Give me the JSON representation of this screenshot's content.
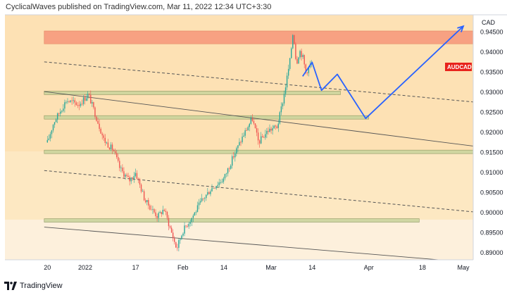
{
  "header": {
    "published_text": "CyclicalWaves published on TradingView.com, Mar 11, 2022 12:34 UTC+3:30"
  },
  "footer": {
    "brand": "TradingView"
  },
  "colors": {
    "background_band": "#fde1b4",
    "resistance_zone": "#f79b7d",
    "support_zone": "#c9d39b",
    "candle_up": "#26a69a",
    "candle_down": "#ef5350",
    "projection_line": "#2962ff",
    "symbol_label": "#e8231c"
  },
  "chart_data": {
    "type": "candlestick",
    "currency": "CAD",
    "symbol": "AUDCAD",
    "ylim": [
      0.888,
      0.947
    ],
    "price_axis_ticks": [
      "0.94500",
      "0.94000",
      "0.93500",
      "0.93000",
      "0.92500",
      "0.92000",
      "0.91500",
      "0.91000",
      "0.90500",
      "0.90000",
      "0.89500",
      "0.89000"
    ],
    "time_axis_ticks": [
      "20",
      "2022",
      "17",
      "Feb",
      "14",
      "Mar",
      "14",
      "Apr",
      "18",
      "May"
    ],
    "price_series": [
      {
        "date": "2021-12-20",
        "value": 0.9175
      },
      {
        "date": "2021-12-22",
        "value": 0.9225
      },
      {
        "date": "2021-12-26",
        "value": 0.928
      },
      {
        "date": "2021-12-30",
        "value": 0.927
      },
      {
        "date": "2022-01-02",
        "value": 0.9295
      },
      {
        "date": "2022-01-04",
        "value": 0.925
      },
      {
        "date": "2022-01-07",
        "value": 0.918
      },
      {
        "date": "2022-01-10",
        "value": 0.9155
      },
      {
        "date": "2022-01-12",
        "value": 0.911
      },
      {
        "date": "2022-01-15",
        "value": 0.908
      },
      {
        "date": "2022-01-17",
        "value": 0.91
      },
      {
        "date": "2022-01-20",
        "value": 0.903
      },
      {
        "date": "2022-01-24",
        "value": 0.899
      },
      {
        "date": "2022-01-26",
        "value": 0.901
      },
      {
        "date": "2022-01-28",
        "value": 0.896
      },
      {
        "date": "2022-01-30",
        "value": 0.891
      },
      {
        "date": "2022-02-01",
        "value": 0.8955
      },
      {
        "date": "2022-02-04",
        "value": 0.899
      },
      {
        "date": "2022-02-07",
        "value": 0.903
      },
      {
        "date": "2022-02-10",
        "value": 0.906
      },
      {
        "date": "2022-02-14",
        "value": 0.9085
      },
      {
        "date": "2022-02-17",
        "value": 0.914
      },
      {
        "date": "2022-02-20",
        "value": 0.919
      },
      {
        "date": "2022-02-23",
        "value": 0.9235
      },
      {
        "date": "2022-02-25",
        "value": 0.9175
      },
      {
        "date": "2022-02-28",
        "value": 0.9205
      },
      {
        "date": "2022-03-03",
        "value": 0.9215
      },
      {
        "date": "2022-03-05",
        "value": 0.929
      },
      {
        "date": "2022-03-07",
        "value": 0.938
      },
      {
        "date": "2022-03-08",
        "value": 0.9455
      },
      {
        "date": "2022-03-09",
        "value": 0.937
      },
      {
        "date": "2022-03-10",
        "value": 0.9405
      },
      {
        "date": "2022-03-11",
        "value": 0.939
      },
      {
        "date": "2022-03-12",
        "value": 0.935
      },
      {
        "date": "2022-03-14",
        "value": 0.9375
      }
    ],
    "projection_path": [
      {
        "date": "2022-03-11",
        "value": 0.934
      },
      {
        "date": "2022-03-14",
        "value": 0.9375
      },
      {
        "date": "2022-03-17",
        "value": 0.9305
      },
      {
        "date": "2022-03-22",
        "value": 0.9345
      },
      {
        "date": "2022-03-31",
        "value": 0.9235
      },
      {
        "date": "2022-05-01",
        "value": 0.9465
      }
    ],
    "zones": [
      {
        "kind": "resistance",
        "price_low": 0.9421,
        "price_high": 0.9453,
        "start_date": "2021-12-19",
        "end_date": "2022-05-06"
      },
      {
        "kind": "support",
        "price_low": 0.9296,
        "price_high": 0.9303,
        "start_date": "2021-12-19",
        "end_date": "2022-03-23"
      },
      {
        "kind": "support",
        "price_low": 0.9236,
        "price_high": 0.9242,
        "start_date": "2021-12-19",
        "end_date": "2022-04-01"
      },
      {
        "kind": "support",
        "price_low": 0.915,
        "price_high": 0.9156,
        "start_date": "2021-12-19",
        "end_date": "2022-05-06"
      },
      {
        "kind": "support",
        "price_low": 0.898,
        "price_high": 0.8985,
        "start_date": "2021-12-19",
        "end_date": "2022-04-17"
      }
    ],
    "trendlines": [
      {
        "style": "dashed",
        "start": {
          "date": "2021-12-19",
          "value": 0.9376
        },
        "end": {
          "date": "2022-05-06",
          "value": 0.9276
        }
      },
      {
        "style": "dashed",
        "start": {
          "date": "2021-12-19",
          "value": 0.9105
        },
        "end": {
          "date": "2022-05-06",
          "value": 0.9002
        }
      },
      {
        "style": "solid",
        "start": {
          "date": "2021-12-19",
          "value": 0.9302
        },
        "end": {
          "date": "2022-05-06",
          "value": 0.9166
        }
      },
      {
        "style": "solid",
        "start": {
          "date": "2021-12-19",
          "value": 0.8964
        },
        "end": {
          "date": "2022-04-27",
          "value": 0.888
        }
      }
    ]
  }
}
